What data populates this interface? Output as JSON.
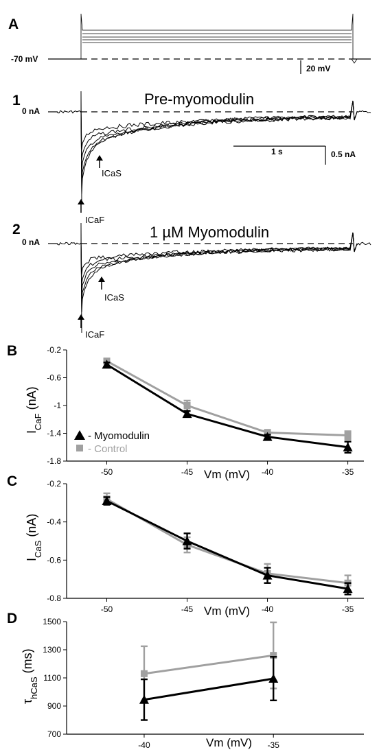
{
  "panel_a": {
    "letter": "A",
    "holding_label": "-70 mV",
    "scale_label": "20 mV"
  },
  "trace1": {
    "number": "1",
    "title": "Pre-myomodulin",
    "zero_label": "0 nA",
    "time_scale": "1 s",
    "current_scale": "0.5 nA",
    "arrow_slow": "ICaS",
    "arrow_fast": "ICaF"
  },
  "trace2": {
    "number": "2",
    "title": "1 µM Myomodulin",
    "zero_label": "0 nA",
    "arrow_slow": "ICaS",
    "arrow_fast": "ICaF"
  },
  "legend": {
    "myomodulin": "- Myomodulin",
    "control": "- Control"
  },
  "colors": {
    "myomodulin": "#000000",
    "control": "#a0a0a0"
  },
  "chart_data": [
    {
      "panel": "B",
      "type": "line",
      "xlabel": "Vm (mV)",
      "ylabel_main": "I",
      "ylabel_sub": "CaF",
      "ylabel_unit": " (nA)",
      "x": [
        -50,
        -45,
        -40,
        -35
      ],
      "xlim": [
        -52.5,
        -34
      ],
      "ylim": [
        -1.8,
        -0.2
      ],
      "yticks": [
        -0.2,
        -0.6,
        -1,
        -1.4,
        -1.8
      ],
      "ytick_labels": [
        "-0.2",
        "-0.6",
        "-1",
        "-1.4",
        "-1.8"
      ],
      "xtick_labels": [
        "-50",
        "-45",
        "-40",
        "-35"
      ],
      "series": [
        {
          "name": "- Control",
          "values": [
            -0.36,
            -1.0,
            -1.39,
            -1.43
          ],
          "errors": [
            0.03,
            0.07,
            0.04,
            0.06
          ]
        },
        {
          "name": "- Myomodulin",
          "values": [
            -0.41,
            -1.12,
            -1.45,
            -1.6
          ],
          "errors": [
            0.03,
            0.04,
            0.03,
            0.08
          ]
        }
      ]
    },
    {
      "panel": "C",
      "type": "line",
      "xlabel": "Vm (mV)",
      "ylabel_main": "I",
      "ylabel_sub": "CaS",
      "ylabel_unit": " (nA)",
      "x": [
        -50,
        -45,
        -40,
        -35
      ],
      "xlim": [
        -52.5,
        -34
      ],
      "ylim": [
        -0.8,
        -0.2
      ],
      "yticks": [
        -0.2,
        -0.4,
        -0.6,
        -0.8
      ],
      "ytick_labels": [
        "-0.2",
        "-0.4",
        "-0.6",
        "-0.8"
      ],
      "xtick_labels": [
        "-50",
        "-45",
        "-40",
        "-35"
      ],
      "series": [
        {
          "name": "- Control",
          "values": [
            -0.28,
            -0.52,
            -0.67,
            -0.72
          ],
          "errors": [
            0.03,
            0.04,
            0.05,
            0.04
          ]
        },
        {
          "name": "- Myomodulin",
          "values": [
            -0.29,
            -0.5,
            -0.68,
            -0.75
          ],
          "errors": [
            0.02,
            0.04,
            0.04,
            0.03
          ]
        }
      ]
    },
    {
      "panel": "D",
      "type": "line",
      "xlabel": "Vm (mV)",
      "ylabel_main": "τ",
      "ylabel_sub": "hCaS",
      "ylabel_unit": " (ms)",
      "x": [
        -40,
        -35
      ],
      "xlim": [
        -43,
        -31.5
      ],
      "ylim": [
        700,
        1500
      ],
      "yticks": [
        700,
        900,
        1100,
        1300,
        1500
      ],
      "ytick_labels": [
        "700",
        "900",
        "1100",
        "1300",
        "1500"
      ],
      "xtick_labels": [
        "-40",
        "-35"
      ],
      "series": [
        {
          "name": "- Control",
          "values": [
            1130,
            1260
          ],
          "errors": [
            195,
            235
          ]
        },
        {
          "name": "- Myomodulin",
          "values": [
            945,
            1095
          ],
          "errors": [
            145,
            155
          ]
        }
      ]
    }
  ]
}
